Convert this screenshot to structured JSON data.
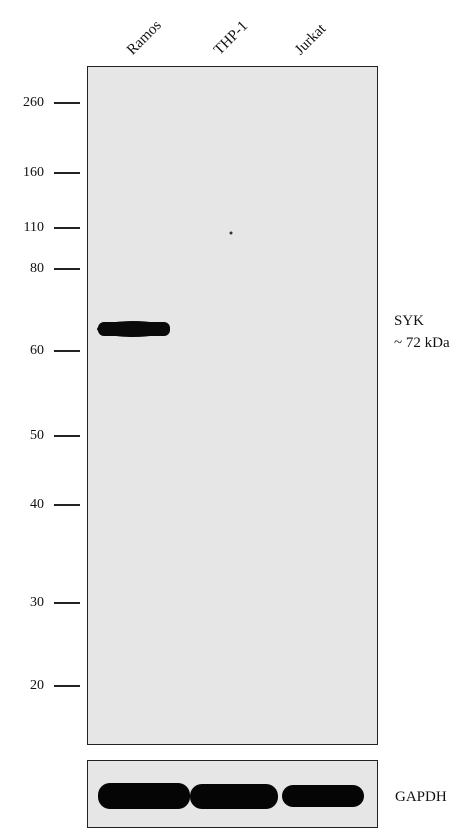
{
  "lanes": [
    "Ramos",
    "THP-1",
    "Jurkat"
  ],
  "markers": [
    "260",
    "160",
    "110",
    "80",
    "60",
    "50",
    "40",
    "30",
    "20"
  ],
  "target": {
    "protein": "SYK",
    "size": "~ 72 kDa"
  },
  "loading_control": "GAPDH",
  "colors": {
    "membrane": "#e6e6e6",
    "band": "#0a0a0a",
    "frame": "#222222"
  }
}
